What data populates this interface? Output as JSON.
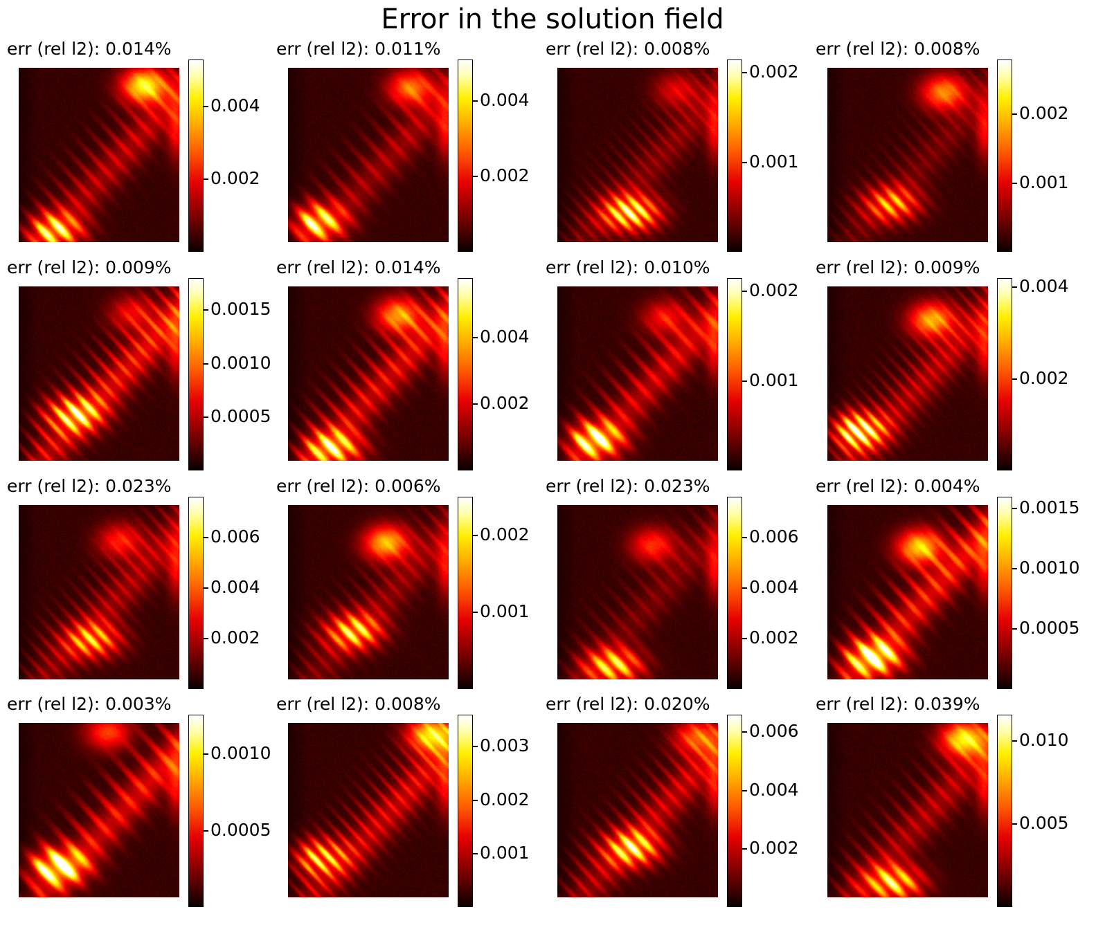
{
  "title": "Error in the solution field",
  "chart_data": [
    {
      "type": "heatmap",
      "title": "err (rel l2): 0.014%",
      "colormap": "hot",
      "colorbar": {
        "range": [
          0,
          0.0053
        ],
        "ticks": [
          "0.002",
          "0.004"
        ],
        "tick_values": [
          0.002,
          0.004
        ]
      }
    },
    {
      "type": "heatmap",
      "title": "err (rel l2): 0.011%",
      "colormap": "hot",
      "colorbar": {
        "range": [
          0,
          0.0051
        ],
        "ticks": [
          "0.002",
          "0.004"
        ],
        "tick_values": [
          0.002,
          0.004
        ]
      }
    },
    {
      "type": "heatmap",
      "title": "err (rel l2): 0.008%",
      "colormap": "hot",
      "colorbar": {
        "range": [
          0,
          0.00215
        ],
        "ticks": [
          "0.001",
          "0.002"
        ],
        "tick_values": [
          0.001,
          0.002
        ]
      }
    },
    {
      "type": "heatmap",
      "title": "err (rel l2): 0.008%",
      "colormap": "hot",
      "colorbar": {
        "range": [
          0,
          0.0028
        ],
        "ticks": [
          "0.001",
          "0.002"
        ],
        "tick_values": [
          0.001,
          0.002
        ]
      }
    },
    {
      "type": "heatmap",
      "title": "err (rel l2): 0.009%",
      "colormap": "hot",
      "colorbar": {
        "range": [
          0,
          0.0018
        ],
        "ticks": [
          "0.0005",
          "0.0010",
          "0.0015"
        ],
        "tick_values": [
          0.0005,
          0.001,
          0.0015
        ]
      }
    },
    {
      "type": "heatmap",
      "title": "err (rel l2): 0.014%",
      "colormap": "hot",
      "colorbar": {
        "range": [
          0,
          0.0058
        ],
        "ticks": [
          "0.002",
          "0.004"
        ],
        "tick_values": [
          0.002,
          0.004
        ]
      }
    },
    {
      "type": "heatmap",
      "title": "err (rel l2): 0.010%",
      "colormap": "hot",
      "colorbar": {
        "range": [
          0,
          0.00215
        ],
        "ticks": [
          "0.001",
          "0.002"
        ],
        "tick_values": [
          0.001,
          0.002
        ]
      }
    },
    {
      "type": "heatmap",
      "title": "err (rel l2): 0.009%",
      "colormap": "hot",
      "colorbar": {
        "range": [
          0,
          0.0042
        ],
        "ticks": [
          "0.002",
          "0.004"
        ],
        "tick_values": [
          0.002,
          0.004
        ]
      }
    },
    {
      "type": "heatmap",
      "title": "err (rel l2): 0.023%",
      "colormap": "hot",
      "colorbar": {
        "range": [
          0,
          0.0076
        ],
        "ticks": [
          "0.002",
          "0.004",
          "0.006"
        ],
        "tick_values": [
          0.002,
          0.004,
          0.006
        ]
      }
    },
    {
      "type": "heatmap",
      "title": "err (rel l2): 0.006%",
      "colormap": "hot",
      "colorbar": {
        "range": [
          0,
          0.0025
        ],
        "ticks": [
          "0.001",
          "0.002"
        ],
        "tick_values": [
          0.001,
          0.002
        ]
      }
    },
    {
      "type": "heatmap",
      "title": "err (rel l2): 0.023%",
      "colormap": "hot",
      "colorbar": {
        "range": [
          0,
          0.0076
        ],
        "ticks": [
          "0.002",
          "0.004",
          "0.006"
        ],
        "tick_values": [
          0.002,
          0.004,
          0.006
        ]
      }
    },
    {
      "type": "heatmap",
      "title": "err (rel l2): 0.004%",
      "colormap": "hot",
      "colorbar": {
        "range": [
          0,
          0.0016
        ],
        "ticks": [
          "0.0005",
          "0.0010",
          "0.0015"
        ],
        "tick_values": [
          0.0005,
          0.001,
          0.0015
        ]
      }
    },
    {
      "type": "heatmap",
      "title": "err (rel l2): 0.003%",
      "colormap": "hot",
      "colorbar": {
        "range": [
          0,
          0.00126
        ],
        "ticks": [
          "0.0005",
          "0.0010"
        ],
        "tick_values": [
          0.0005,
          0.001
        ]
      }
    },
    {
      "type": "heatmap",
      "title": "err (rel l2): 0.008%",
      "colormap": "hot",
      "colorbar": {
        "range": [
          0,
          0.0036
        ],
        "ticks": [
          "0.001",
          "0.002",
          "0.003"
        ],
        "tick_values": [
          0.001,
          0.002,
          0.003
        ]
      }
    },
    {
      "type": "heatmap",
      "title": "err (rel l2): 0.020%",
      "colormap": "hot",
      "colorbar": {
        "range": [
          0,
          0.0066
        ],
        "ticks": [
          "0.002",
          "0.004",
          "0.006"
        ],
        "tick_values": [
          0.002,
          0.004,
          0.006
        ]
      }
    },
    {
      "type": "heatmap",
      "title": "err (rel l2): 0.039%",
      "colormap": "hot",
      "colorbar": {
        "range": [
          0,
          0.0116
        ],
        "ticks": [
          "0.005",
          "0.010"
        ],
        "tick_values": [
          0.005,
          0.01
        ]
      }
    }
  ]
}
